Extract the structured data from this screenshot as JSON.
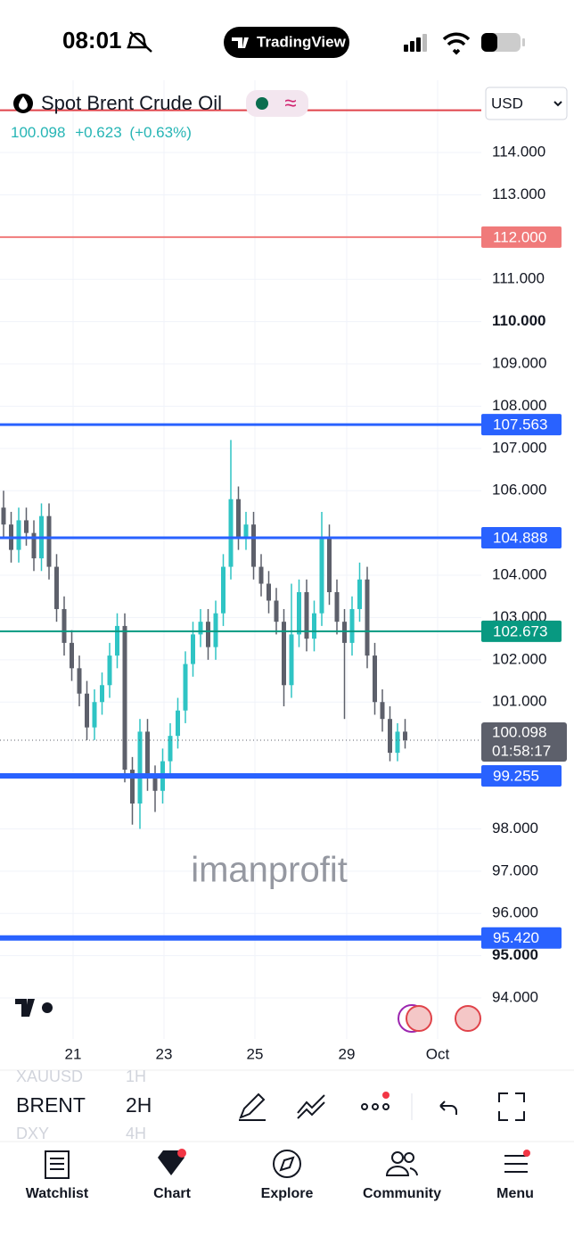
{
  "status_bar": {
    "time": "08:01",
    "app": "TradingView"
  },
  "header": {
    "symbol": "Spot Brent Crude Oil",
    "price": "100.098",
    "change": "+0.623",
    "change_pct": "(+0.63%)",
    "currency": "USD"
  },
  "chart_data": {
    "type": "candlestick",
    "up_color": "#2fc4c4",
    "down_color": "#5d606b",
    "grid": true,
    "ylim": [
      93.03,
      115.71
    ],
    "yticks": [
      {
        "value": 114,
        "label": "114.000"
      },
      {
        "value": 113,
        "label": "113.000"
      },
      {
        "value": 111,
        "label": "111.000"
      },
      {
        "value": 110,
        "label": "110.000",
        "bold": true
      },
      {
        "value": 109,
        "label": "109.000"
      },
      {
        "value": 108,
        "label": "108.000"
      },
      {
        "value": 107,
        "label": "107.000"
      },
      {
        "value": 106,
        "label": "106.000"
      },
      {
        "value": 104,
        "label": "104.000"
      },
      {
        "value": 103,
        "label": "103.000"
      },
      {
        "value": 102,
        "label": "102.000"
      },
      {
        "value": 101,
        "label": "101.000"
      },
      {
        "value": 98,
        "label": "98.000"
      },
      {
        "value": 97,
        "label": "97.000"
      },
      {
        "value": 96,
        "label": "96.000"
      },
      {
        "value": 95,
        "label": "95.000",
        "bold": true
      },
      {
        "value": 94,
        "label": "94.000"
      }
    ],
    "x_labels": [
      "21",
      "23",
      "25",
      "29",
      "Oct"
    ],
    "candles": [
      [
        105.6,
        106.0,
        104.9,
        105.2
      ],
      [
        105.2,
        105.5,
        104.3,
        104.6
      ],
      [
        104.6,
        105.6,
        104.3,
        105.3
      ],
      [
        105.3,
        105.6,
        104.7,
        105.0
      ],
      [
        105.0,
        105.3,
        104.1,
        104.4
      ],
      [
        104.4,
        105.7,
        104.1,
        105.4
      ],
      [
        105.4,
        105.7,
        103.9,
        104.2
      ],
      [
        104.2,
        104.5,
        102.9,
        103.2
      ],
      [
        103.2,
        103.5,
        102.1,
        102.4
      ],
      [
        102.4,
        102.7,
        101.5,
        101.8
      ],
      [
        101.8,
        102.1,
        100.9,
        101.2
      ],
      [
        101.2,
        101.5,
        100.1,
        100.4
      ],
      [
        100.4,
        101.3,
        100.1,
        101.0
      ],
      [
        101.0,
        101.7,
        100.7,
        101.4
      ],
      [
        101.4,
        102.4,
        101.1,
        102.1
      ],
      [
        102.1,
        103.1,
        101.8,
        102.8
      ],
      [
        102.8,
        103.1,
        99.1,
        99.4
      ],
      [
        99.4,
        99.7,
        98.1,
        98.6
      ],
      [
        98.6,
        100.6,
        98.0,
        100.3
      ],
      [
        100.3,
        100.6,
        98.9,
        99.2
      ],
      [
        99.2,
        99.5,
        98.4,
        98.9
      ],
      [
        98.9,
        99.9,
        98.6,
        99.6
      ],
      [
        99.6,
        100.5,
        99.3,
        100.2
      ],
      [
        100.2,
        101.1,
        99.9,
        100.8
      ],
      [
        100.8,
        102.2,
        100.5,
        101.9
      ],
      [
        101.9,
        102.9,
        101.6,
        102.6
      ],
      [
        102.6,
        103.2,
        102.3,
        102.9
      ],
      [
        102.9,
        103.2,
        102.0,
        102.3
      ],
      [
        102.3,
        103.4,
        102.0,
        103.1
      ],
      [
        103.1,
        104.5,
        102.8,
        104.2
      ],
      [
        104.2,
        107.2,
        103.9,
        105.8
      ],
      [
        105.8,
        106.1,
        104.6,
        104.9
      ],
      [
        104.9,
        105.5,
        104.6,
        105.2
      ],
      [
        105.2,
        105.5,
        103.9,
        104.2
      ],
      [
        104.2,
        104.5,
        103.5,
        103.8
      ],
      [
        103.8,
        104.1,
        103.1,
        103.4
      ],
      [
        103.4,
        103.7,
        102.6,
        102.9
      ],
      [
        102.9,
        103.2,
        100.9,
        101.4
      ],
      [
        101.4,
        103.8,
        101.1,
        102.6
      ],
      [
        102.6,
        103.9,
        102.3,
        103.6
      ],
      [
        103.6,
        103.9,
        102.2,
        102.5
      ],
      [
        102.5,
        103.4,
        102.2,
        103.1
      ],
      [
        103.1,
        105.5,
        102.8,
        104.9
      ],
      [
        104.9,
        105.2,
        103.3,
        103.6
      ],
      [
        103.6,
        103.9,
        102.6,
        102.9
      ],
      [
        102.9,
        103.2,
        100.6,
        102.4
      ],
      [
        102.4,
        103.5,
        102.1,
        103.2
      ],
      [
        103.2,
        104.3,
        102.9,
        103.9
      ],
      [
        103.9,
        104.2,
        101.8,
        102.1
      ],
      [
        102.1,
        102.4,
        100.7,
        101.0
      ],
      [
        101.0,
        101.3,
        100.3,
        100.6
      ],
      [
        100.6,
        100.9,
        99.6,
        99.8
      ],
      [
        99.8,
        100.5,
        99.6,
        100.3
      ],
      [
        100.3,
        100.6,
        99.9,
        100.098
      ]
    ],
    "price_lines": [
      {
        "value": 115,
        "color": "#e0434a",
        "width": 2
      },
      {
        "value": 112,
        "label": "112.000",
        "color": "#f07a7a",
        "width": 2
      },
      {
        "value": 107.563,
        "label": "107.563",
        "color": "#2962ff",
        "width": 3
      },
      {
        "value": 104.888,
        "label": "104.888",
        "color": "#2962ff",
        "width": 3
      },
      {
        "value": 102.673,
        "label": "102.673",
        "color": "#089981",
        "width": 2
      },
      {
        "value": 99.255,
        "label": "99.255",
        "color": "#2962ff",
        "width": 6
      },
      {
        "value": 95.42,
        "label": "95.420",
        "color": "#2962ff",
        "width": 6
      }
    ],
    "last_price": {
      "value": 100.098,
      "label": "100.098",
      "countdown": "01:58:17"
    },
    "watermark": "imanprofit"
  },
  "toolbar": {
    "symbols": [
      "XAUUSD",
      "BRENT",
      "DXY"
    ],
    "intervals": [
      "1H",
      "2H",
      "4H"
    ]
  },
  "nav": [
    "Watchlist",
    "Chart",
    "Explore",
    "Community",
    "Menu"
  ]
}
